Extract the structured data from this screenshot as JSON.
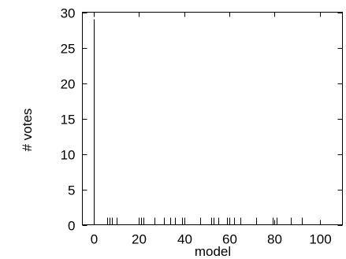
{
  "chart_data": {
    "type": "bar",
    "xlabel": "model",
    "ylabel": "# votes",
    "xlim": [
      -5,
      110
    ],
    "ylim": [
      0,
      30
    ],
    "xticks": [
      0,
      20,
      40,
      60,
      80,
      100
    ],
    "yticks": [
      0,
      5,
      10,
      15,
      20,
      25,
      30
    ],
    "grid": false,
    "series": [
      {
        "points": [
          {
            "x": 0,
            "y": 29
          },
          {
            "x": 6,
            "y": 1
          },
          {
            "x": 7,
            "y": 1
          },
          {
            "x": 8,
            "y": 1
          },
          {
            "x": 10,
            "y": 1
          },
          {
            "x": 20,
            "y": 1
          },
          {
            "x": 21,
            "y": 1
          },
          {
            "x": 22,
            "y": 1
          },
          {
            "x": 27,
            "y": 1
          },
          {
            "x": 31,
            "y": 1
          },
          {
            "x": 34,
            "y": 1
          },
          {
            "x": 36,
            "y": 1
          },
          {
            "x": 39,
            "y": 1
          },
          {
            "x": 40,
            "y": 1
          },
          {
            "x": 47,
            "y": 1
          },
          {
            "x": 52,
            "y": 1
          },
          {
            "x": 53,
            "y": 1
          },
          {
            "x": 55,
            "y": 1
          },
          {
            "x": 59,
            "y": 1
          },
          {
            "x": 60,
            "y": 1
          },
          {
            "x": 62,
            "y": 1
          },
          {
            "x": 65,
            "y": 1
          },
          {
            "x": 72,
            "y": 1
          },
          {
            "x": 79,
            "y": 1
          },
          {
            "x": 81,
            "y": 1
          },
          {
            "x": 87,
            "y": 1
          },
          {
            "x": 92,
            "y": 1
          }
        ]
      }
    ]
  }
}
